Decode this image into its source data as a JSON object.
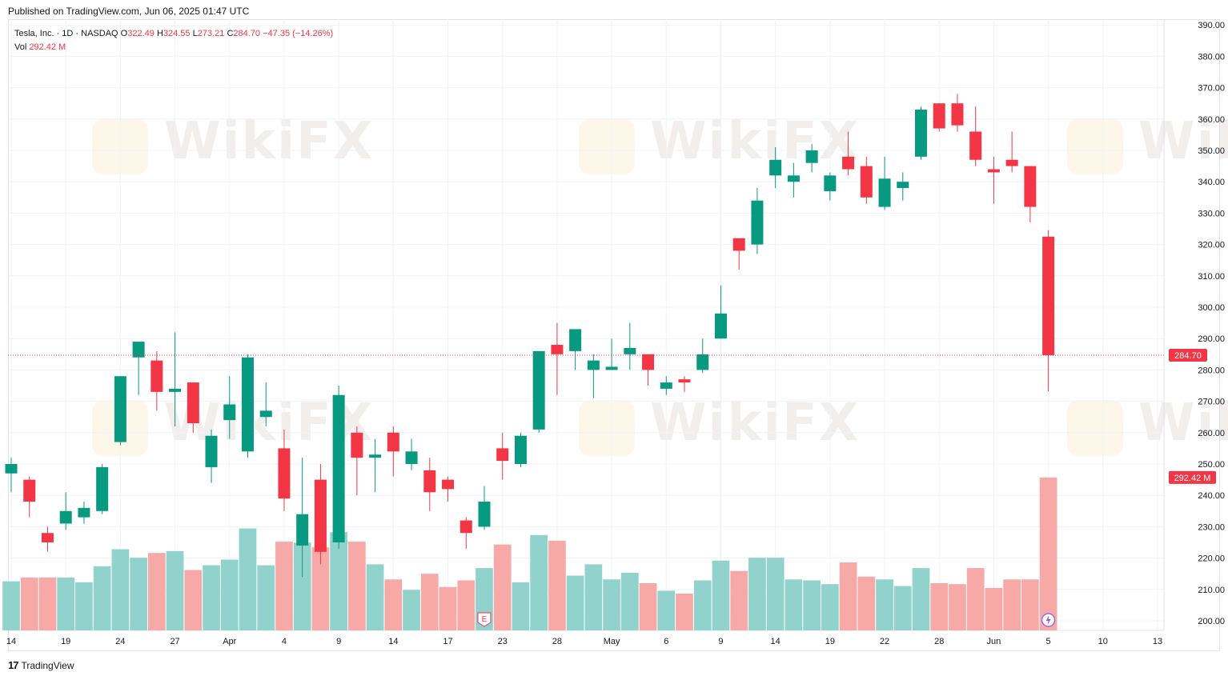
{
  "header": {
    "published": "Published on TradingView.com, Jun 06, 2025 01:47 UTC"
  },
  "legend": {
    "symbol": "Tesla, Inc. · 1D · NASDAQ",
    "o_label": "O",
    "o_value": "322.49",
    "h_label": "H",
    "h_value": "324.55",
    "l_label": "L",
    "l_value": "273.21",
    "c_label": "C",
    "c_value": "284.70",
    "change": "−47.35 (−14.26%)",
    "vol_label": "Vol",
    "vol_value": "292.42 M"
  },
  "footer": {
    "logo": "17",
    "brand": "TradingView"
  },
  "watermark": {
    "text": "WikiFX"
  },
  "colors": {
    "up": "#089981",
    "down": "#f23645",
    "up_vol": "#92d2cc",
    "down_vol": "#f7a9a7"
  },
  "chart_data": {
    "type": "candlestick",
    "price_axis": {
      "min": 200,
      "max": 390,
      "step": 10
    },
    "last_price_label": "284.70",
    "last_volume_label": "292.42 M",
    "x_tick_labels": [
      {
        "index": 0,
        "label": "14"
      },
      {
        "index": 3,
        "label": "19"
      },
      {
        "index": 6,
        "label": "24"
      },
      {
        "index": 9,
        "label": "27"
      },
      {
        "index": 12,
        "label": "Apr"
      },
      {
        "index": 15,
        "label": "4"
      },
      {
        "index": 18,
        "label": "9"
      },
      {
        "index": 21,
        "label": "14"
      },
      {
        "index": 24,
        "label": "17"
      },
      {
        "index": 27,
        "label": "23"
      },
      {
        "index": 30,
        "label": "28"
      },
      {
        "index": 33,
        "label": "May"
      },
      {
        "index": 36,
        "label": "6"
      },
      {
        "index": 39,
        "label": "9"
      },
      {
        "index": 42,
        "label": "14"
      },
      {
        "index": 45,
        "label": "19"
      },
      {
        "index": 48,
        "label": "22"
      },
      {
        "index": 51,
        "label": "28"
      },
      {
        "index": 54,
        "label": "Jun"
      },
      {
        "index": 57,
        "label": "5"
      },
      {
        "index": 60,
        "label": "10"
      },
      {
        "index": 63,
        "label": "13"
      }
    ],
    "candles": [
      {
        "o": 247,
        "h": 252,
        "l": 241,
        "c": 250,
        "v": 52
      },
      {
        "o": 245,
        "h": 246,
        "l": 233,
        "c": 238,
        "v": 56
      },
      {
        "o": 228,
        "h": 230,
        "l": 222,
        "c": 225,
        "v": 56
      },
      {
        "o": 231,
        "h": 241,
        "l": 229,
        "c": 235,
        "v": 56
      },
      {
        "o": 233,
        "h": 238,
        "l": 231,
        "c": 236,
        "v": 51
      },
      {
        "o": 235,
        "h": 250,
        "l": 234,
        "c": 249,
        "v": 68
      },
      {
        "o": 257,
        "h": 278,
        "l": 256,
        "c": 278,
        "v": 86
      },
      {
        "o": 284,
        "h": 289,
        "l": 272,
        "c": 289,
        "v": 77
      },
      {
        "o": 283,
        "h": 286,
        "l": 267,
        "c": 273,
        "v": 82
      },
      {
        "o": 273,
        "h": 292,
        "l": 262,
        "c": 274,
        "v": 84
      },
      {
        "o": 276,
        "h": 276,
        "l": 260,
        "c": 263,
        "v": 64
      },
      {
        "o": 249,
        "h": 261,
        "l": 244,
        "c": 259,
        "v": 69
      },
      {
        "o": 264,
        "h": 278,
        "l": 258,
        "c": 269,
        "v": 75
      },
      {
        "o": 254,
        "h": 285,
        "l": 252,
        "c": 284,
        "v": 108
      },
      {
        "o": 265,
        "h": 276,
        "l": 262,
        "c": 267,
        "v": 69
      },
      {
        "o": 255,
        "h": 261,
        "l": 235,
        "c": 239,
        "v": 94
      },
      {
        "o": 224,
        "h": 252,
        "l": 214,
        "c": 234,
        "v": 93
      },
      {
        "o": 245,
        "h": 250,
        "l": 218,
        "c": 222,
        "v": 88
      },
      {
        "o": 225,
        "h": 275,
        "l": 223,
        "c": 272,
        "v": 104
      },
      {
        "o": 260,
        "h": 262,
        "l": 240,
        "c": 252,
        "v": 94
      },
      {
        "o": 252,
        "h": 258,
        "l": 241,
        "c": 253,
        "v": 70
      },
      {
        "o": 260,
        "h": 262,
        "l": 246,
        "c": 254,
        "v": 54
      },
      {
        "o": 250,
        "h": 258,
        "l": 248,
        "c": 254,
        "v": 43
      },
      {
        "o": 248,
        "h": 252,
        "l": 235,
        "c": 241,
        "v": 60
      },
      {
        "o": 245,
        "h": 246,
        "l": 238,
        "c": 242,
        "v": 46
      },
      {
        "o": 232,
        "h": 233,
        "l": 223,
        "c": 228,
        "v": 53
      },
      {
        "o": 230,
        "h": 243,
        "l": 229,
        "c": 238,
        "v": 66
      },
      {
        "o": 255,
        "h": 260,
        "l": 245,
        "c": 251,
        "v": 91
      },
      {
        "o": 250,
        "h": 260,
        "l": 249,
        "c": 259,
        "v": 51
      },
      {
        "o": 261,
        "h": 286,
        "l": 260,
        "c": 286,
        "v": 101
      },
      {
        "o": 288,
        "h": 295,
        "l": 272,
        "c": 285,
        "v": 95
      },
      {
        "o": 286,
        "h": 293,
        "l": 280,
        "c": 293,
        "v": 58
      },
      {
        "o": 280,
        "h": 285,
        "l": 271,
        "c": 283,
        "v": 70
      },
      {
        "o": 280,
        "h": 290,
        "l": 280,
        "c": 281,
        "v": 54
      },
      {
        "o": 285,
        "h": 295,
        "l": 280,
        "c": 287,
        "v": 61
      },
      {
        "o": 285,
        "h": 285,
        "l": 275,
        "c": 280,
        "v": 50
      },
      {
        "o": 274,
        "h": 278,
        "l": 272,
        "c": 276,
        "v": 42
      },
      {
        "o": 277,
        "h": 278,
        "l": 273,
        "c": 276,
        "v": 39
      },
      {
        "o": 280,
        "h": 290,
        "l": 279,
        "c": 285,
        "v": 53
      },
      {
        "o": 290,
        "h": 307,
        "l": 290,
        "c": 298,
        "v": 74
      },
      {
        "o": 322,
        "h": 322,
        "l": 312,
        "c": 318,
        "v": 63
      },
      {
        "o": 320,
        "h": 338,
        "l": 317,
        "c": 334,
        "v": 77
      },
      {
        "o": 342,
        "h": 351,
        "l": 338,
        "c": 347,
        "v": 77
      },
      {
        "o": 340,
        "h": 346,
        "l": 335,
        "c": 342,
        "v": 54
      },
      {
        "o": 346,
        "h": 352,
        "l": 343,
        "c": 350,
        "v": 53
      },
      {
        "o": 337,
        "h": 343,
        "l": 334,
        "c": 342,
        "v": 49
      },
      {
        "o": 348,
        "h": 356,
        "l": 342,
        "c": 344,
        "v": 72
      },
      {
        "o": 345,
        "h": 348,
        "l": 333,
        "c": 335,
        "v": 57
      },
      {
        "o": 332,
        "h": 348,
        "l": 331,
        "c": 341,
        "v": 54
      },
      {
        "o": 338,
        "h": 343,
        "l": 334,
        "c": 340,
        "v": 47
      },
      {
        "o": 348,
        "h": 364,
        "l": 347,
        "c": 363,
        "v": 66
      },
      {
        "o": 365,
        "h": 365,
        "l": 356,
        "c": 357,
        "v": 50
      },
      {
        "o": 365,
        "h": 368,
        "l": 356,
        "c": 358,
        "v": 49
      },
      {
        "o": 356,
        "h": 364,
        "l": 345,
        "c": 347,
        "v": 66
      },
      {
        "o": 344,
        "h": 348,
        "l": 333,
        "c": 343,
        "v": 45
      },
      {
        "o": 347,
        "h": 356,
        "l": 343,
        "c": 345,
        "v": 54
      },
      {
        "o": 345,
        "h": 345,
        "l": 327,
        "c": 332,
        "v": 54
      },
      {
        "o": 322.49,
        "h": 324.55,
        "l": 273.21,
        "c": 284.7,
        "v": 162
      }
    ]
  }
}
